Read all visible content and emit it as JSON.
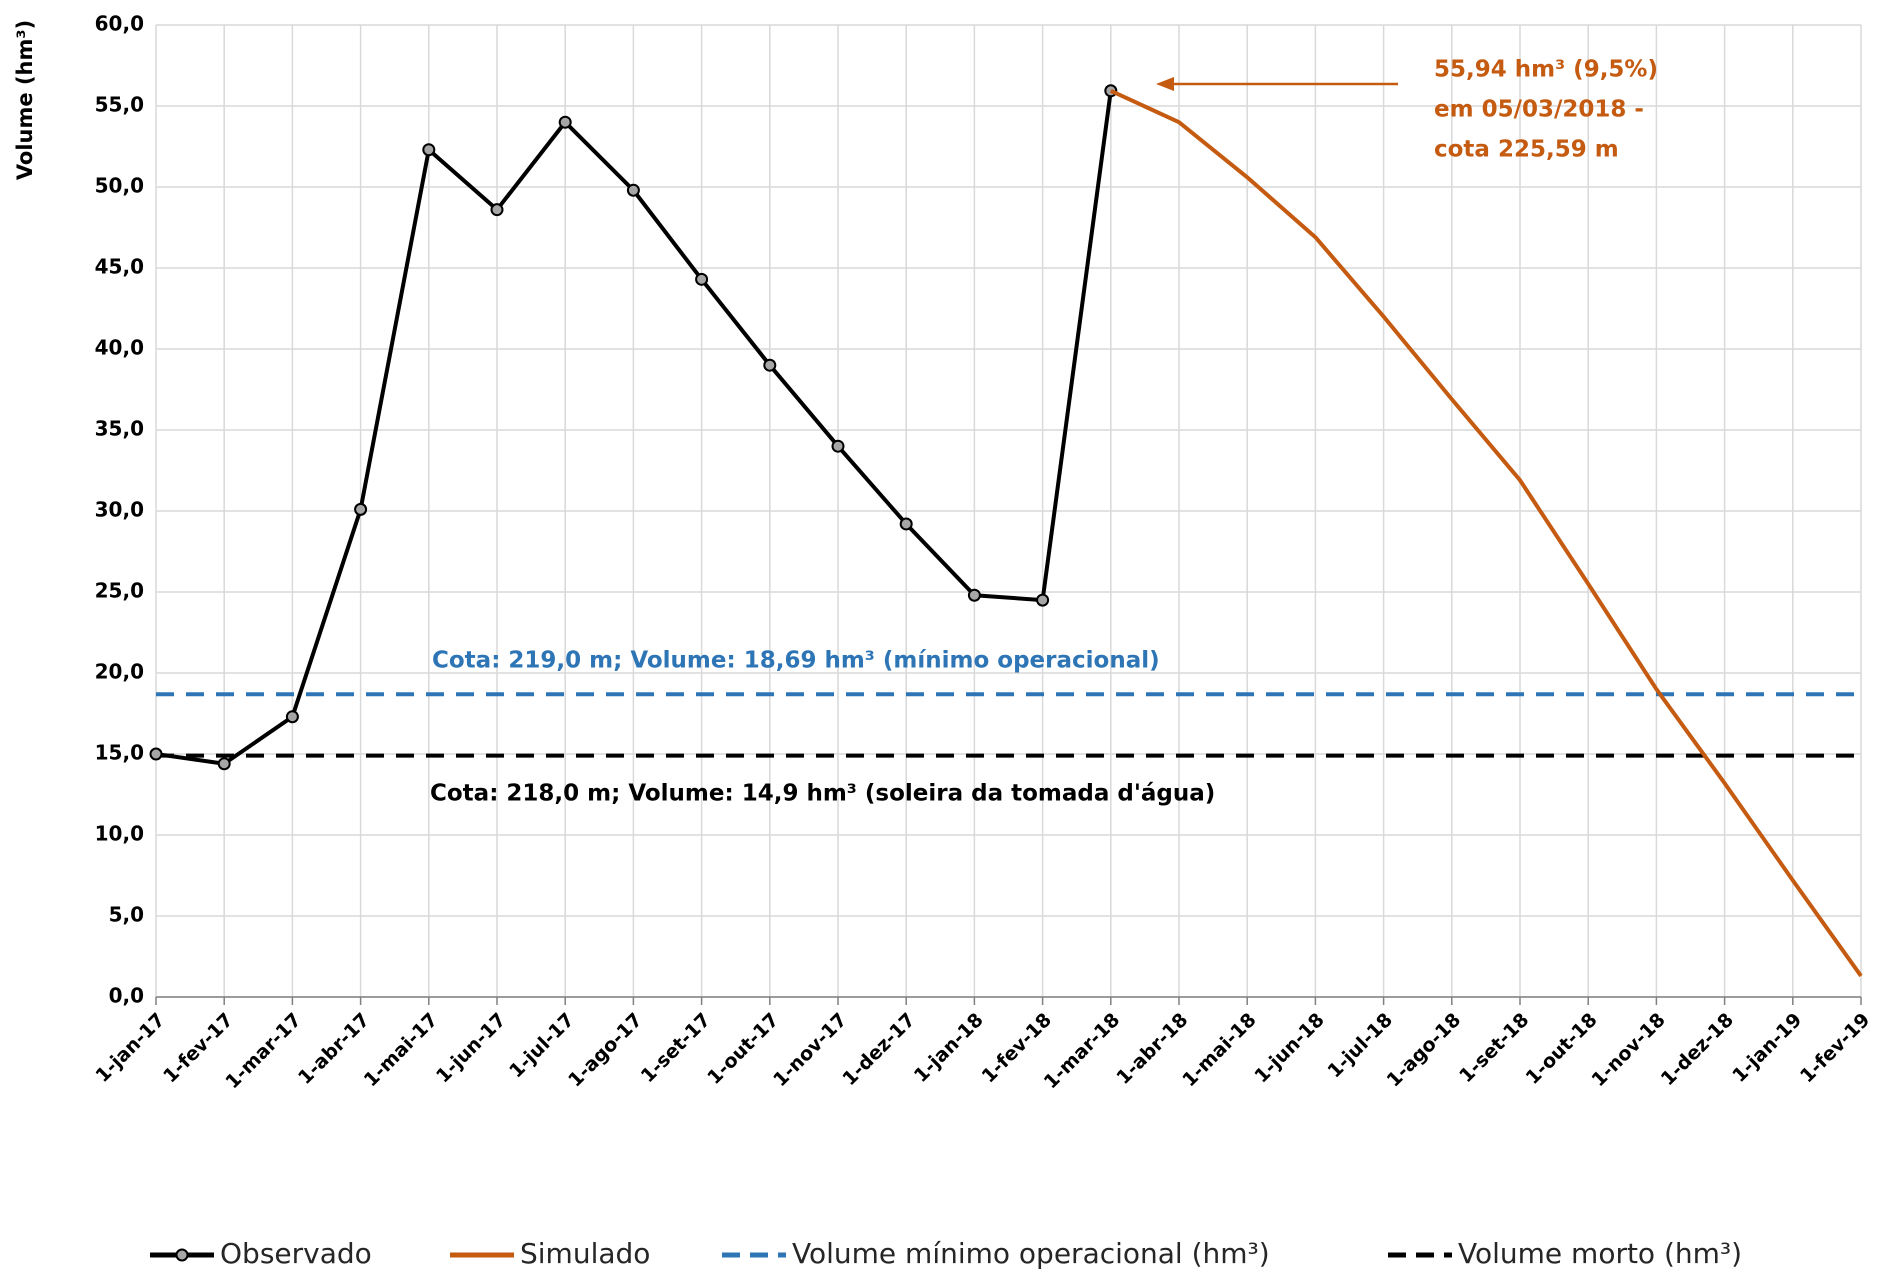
{
  "chart_data": {
    "type": "line",
    "ylabel": "Volume (hm³)",
    "categories": [
      "1-jan-17",
      "1-fev-17",
      "1-mar-17",
      "1-abr-17",
      "1-mai-17",
      "1-jun-17",
      "1-jul-17",
      "1-ago-17",
      "1-set-17",
      "1-out-17",
      "1-nov-17",
      "1-dez-17",
      "1-jan-18",
      "1-fev-18",
      "1-mar-18",
      "1-abr-18",
      "1-mai-18",
      "1-jun-18",
      "1-jul-18",
      "1-ago-18",
      "1-set-18",
      "1-out-18",
      "1-nov-18",
      "1-dez-18",
      "1-jan-19",
      "1-fev-19"
    ],
    "series": [
      {
        "name": "Observado",
        "color": "#000000",
        "markers": true,
        "dash": false,
        "values": [
          15.0,
          14.4,
          17.3,
          30.1,
          52.3,
          48.6,
          54.0,
          49.8,
          44.3,
          39.0,
          34.0,
          29.2,
          24.8,
          24.5,
          55.94,
          null,
          null,
          null,
          null,
          null,
          null,
          null,
          null,
          null,
          null,
          null
        ]
      },
      {
        "name": "Simulado",
        "color": "#c55a11",
        "markers": false,
        "dash": false,
        "values": [
          null,
          null,
          null,
          null,
          null,
          null,
          null,
          null,
          null,
          null,
          null,
          null,
          null,
          null,
          55.94,
          54.0,
          50.6,
          46.9,
          42.0,
          36.9,
          31.9,
          25.5,
          19.0,
          13.2,
          7.2,
          1.3
        ]
      },
      {
        "name": "Volume mínimo operacional (hm³)",
        "color": "#2e75b6",
        "markers": false,
        "dash": true,
        "values": [
          18.69,
          18.69,
          18.69,
          18.69,
          18.69,
          18.69,
          18.69,
          18.69,
          18.69,
          18.69,
          18.69,
          18.69,
          18.69,
          18.69,
          18.69,
          18.69,
          18.69,
          18.69,
          18.69,
          18.69,
          18.69,
          18.69,
          18.69,
          18.69,
          18.69,
          18.69
        ]
      },
      {
        "name": "Volume morto (hm³)",
        "color": "#000000",
        "markers": false,
        "dash": true,
        "values": [
          14.9,
          14.9,
          14.9,
          14.9,
          14.9,
          14.9,
          14.9,
          14.9,
          14.9,
          14.9,
          14.9,
          14.9,
          14.9,
          14.9,
          14.9,
          14.9,
          14.9,
          14.9,
          14.9,
          14.9,
          14.9,
          14.9,
          14.9,
          14.9,
          14.9,
          14.9
        ]
      }
    ],
    "ylim": [
      0,
      60
    ],
    "yticks": [
      {
        "value": 0,
        "label": "0,0"
      },
      {
        "value": 5,
        "label": "5,0"
      },
      {
        "value": 10,
        "label": "10,0"
      },
      {
        "value": 15,
        "label": "15,0"
      },
      {
        "value": 20,
        "label": "20,0"
      },
      {
        "value": 25,
        "label": "25,0"
      },
      {
        "value": 30,
        "label": "30,0"
      },
      {
        "value": 35,
        "label": "35,0"
      },
      {
        "value": 40,
        "label": "40,0"
      },
      {
        "value": 45,
        "label": "45,0"
      },
      {
        "value": 50,
        "label": "50,0"
      },
      {
        "value": 55,
        "label": "55,0"
      },
      {
        "value": 60,
        "label": "60,0"
      }
    ],
    "grid": true,
    "legend": "bottom",
    "annotations": [
      {
        "lines": [
          "55,94 hm³ (9,5%)",
          "em 05/03/2018 -",
          "cota 225,59 m"
        ],
        "color": "#c55a11"
      },
      {
        "lines": [
          "Cota: 219,0 m; Volume: 18,69 hm³ (mínimo operacional)"
        ],
        "color": "#2e75b6"
      },
      {
        "lines": [
          "Cota: 218,0 m; Volume: 14,9 hm³ (soleira da tomada d'água)"
        ],
        "color": "#000000"
      }
    ]
  }
}
